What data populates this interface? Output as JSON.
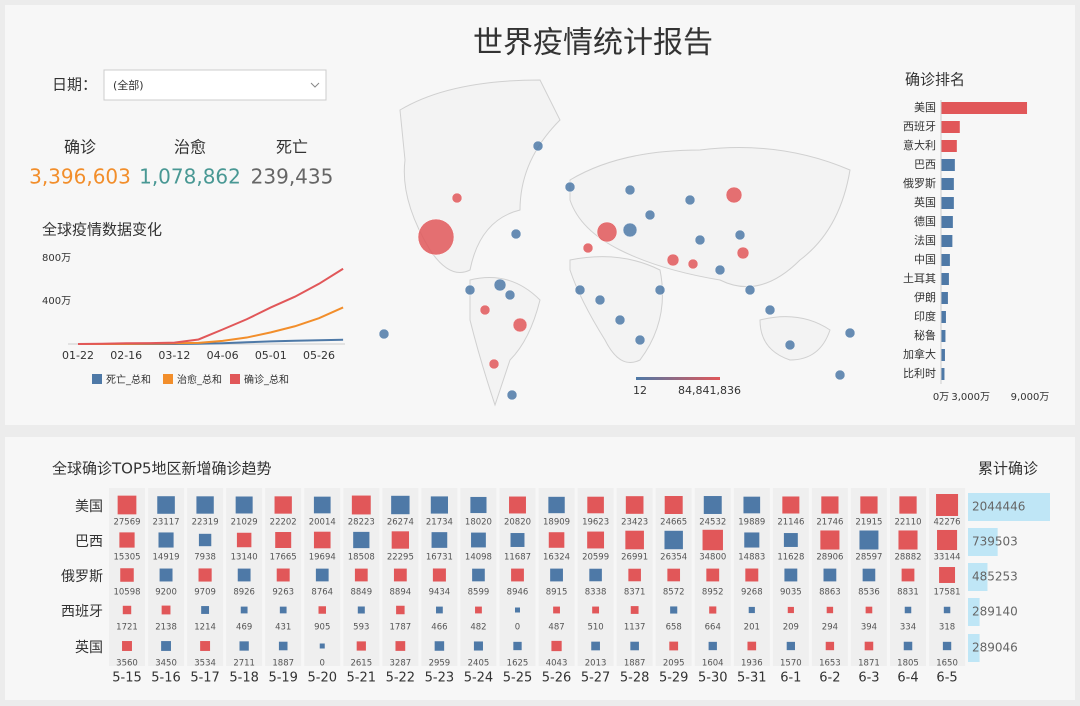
{
  "title": "世界疫情统计报告",
  "filter": {
    "label": "日期：",
    "value": "(全部)"
  },
  "kpis": [
    {
      "label": "确诊",
      "value": "3,396,603",
      "color": "#f28e2b"
    },
    {
      "label": "治愈",
      "value": "1,078,862",
      "color": "#499894"
    },
    {
      "label": "死亡",
      "value": "239,435",
      "color": "#666666"
    }
  ],
  "map": {
    "legend_min": 12,
    "legend_max": {
      "value": 84841836,
      "label": "84,841,836"
    },
    "low_color": "#4e79a7",
    "high_color": "#e15759"
  },
  "chart_data": [
    {
      "type": "line",
      "title": "全球疫情数据变化",
      "categories": [
        "01-22",
        null,
        "02-16",
        null,
        "03-12",
        null,
        "04-06",
        null,
        "05-01",
        null,
        "05-26",
        null
      ],
      "series": [
        {
          "name": "死亡_总和",
          "color": "#4e79a7",
          "values": [
            17,
            430,
            1770,
            2900,
            4700,
            19000,
            75000,
            165000,
            240000,
            300000,
            350000,
            400000
          ]
        },
        {
          "name": "治愈_总和",
          "color": "#f28e2b",
          "values": [
            28,
            600,
            12000,
            36000,
            68000,
            110000,
            290000,
            600000,
            1080000,
            1650000,
            2400000,
            3400000
          ]
        },
        {
          "name": "确诊_总和",
          "color": "#e15759",
          "values": [
            555,
            20000,
            71000,
            84000,
            128000,
            420000,
            1350000,
            2300000,
            3400000,
            4400000,
            5600000,
            7000000
          ]
        }
      ],
      "ylim": [
        0,
        8000000
      ],
      "yticks": [
        {
          "value": 4000000,
          "label": "400万"
        },
        {
          "value": 8000000,
          "label": "800万"
        }
      ]
    },
    {
      "type": "hbar",
      "title": "确诊排名",
      "categories": [
        "美国",
        "西班牙",
        "意大利",
        "巴西",
        "俄罗斯",
        "英国",
        "德国",
        "法国",
        "中国",
        "土耳其",
        "伊朗",
        "印度",
        "秘鲁",
        "加拿大",
        "比利时"
      ],
      "values": [
        87000000,
        19000000,
        16000000,
        14000000,
        13000000,
        13000000,
        12000000,
        11500000,
        9000000,
        8000000,
        7000000,
        5000000,
        4500000,
        4000000,
        3500000
      ],
      "colors": [
        "#e15759",
        "#e15759",
        "#e15759",
        "#4e79a7",
        "#4e79a7",
        "#4e79a7",
        "#4e79a7",
        "#4e79a7",
        "#4e79a7",
        "#4e79a7",
        "#4e79a7",
        "#4e79a7",
        "#4e79a7",
        "#4e79a7",
        "#4e79a7"
      ],
      "xlim": [
        0,
        90000000
      ],
      "xticks": [
        {
          "value": 0,
          "label": "0万"
        },
        {
          "value": 30000000,
          "label": "3,000万"
        },
        {
          "value": 90000000,
          "label": "9,000万"
        }
      ]
    },
    {
      "type": "squares",
      "title": "全球确诊TOP5地区新增确诊趋势",
      "categories": [
        "5-15",
        "5-16",
        "5-17",
        "5-18",
        "5-19",
        "5-20",
        "5-21",
        "5-22",
        "5-23",
        "5-24",
        "5-25",
        "5-26",
        "5-27",
        "5-28",
        "5-29",
        "5-30",
        "5-31",
        "6-1",
        "6-2",
        "6-3",
        "6-4",
        "6-5"
      ],
      "increase_color": "#e15759",
      "decrease_color": "#4e79a7",
      "series": [
        {
          "name": "美国",
          "values": [
            27569,
            23117,
            22319,
            21029,
            22202,
            20014,
            28223,
            26274,
            21734,
            18020,
            20820,
            18909,
            19623,
            23423,
            24665,
            24532,
            19889,
            21146,
            21746,
            21915,
            22110,
            42276
          ]
        },
        {
          "name": "巴西",
          "values": [
            15305,
            14919,
            7938,
            13140,
            17665,
            19694,
            18508,
            22295,
            16731,
            14098,
            11687,
            16324,
            20599,
            26991,
            26354,
            34800,
            14883,
            11628,
            28906,
            28597,
            28882,
            33144
          ]
        },
        {
          "name": "俄罗斯",
          "values": [
            10598,
            9200,
            9709,
            8926,
            9263,
            8764,
            8849,
            8894,
            9434,
            8599,
            8946,
            8915,
            8338,
            8371,
            8572,
            8952,
            9268,
            9035,
            8863,
            8536,
            8831,
            17581
          ]
        },
        {
          "name": "西班牙",
          "values": [
            1721,
            2138,
            1214,
            469,
            431,
            905,
            593,
            1787,
            466,
            482,
            0,
            487,
            510,
            1137,
            658,
            664,
            201,
            209,
            294,
            394,
            334,
            318
          ]
        },
        {
          "name": "英国",
          "values": [
            3560,
            3450,
            3534,
            2711,
            1887,
            0,
            2615,
            3287,
            2959,
            2405,
            1625,
            4043,
            2013,
            1887,
            2095,
            1604,
            1936,
            1570,
            1653,
            1871,
            1805,
            1650
          ]
        }
      ]
    },
    {
      "type": "cumbar",
      "title": "累计确诊",
      "values": [
        2044446,
        739503,
        485253,
        289140,
        289046
      ],
      "color": "#bfe6f6"
    }
  ]
}
